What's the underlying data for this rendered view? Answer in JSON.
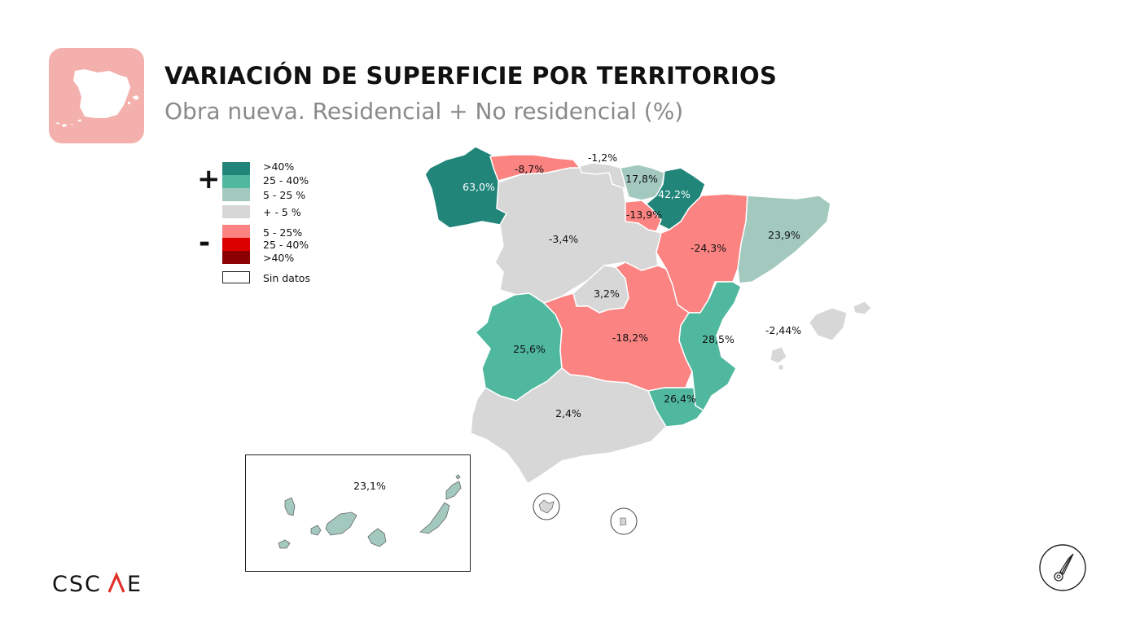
{
  "header": {
    "title": "VARIACIÓN DE SUPERFICIE POR TERRITORIOS",
    "subtitle": "Obra nueva. Residencial + No residencial (%)"
  },
  "brand": {
    "logo_text": "CSCAE",
    "logo_accent": "#e0312b",
    "tile_color": "#f4b0ad"
  },
  "legend": {
    "plus_sign": "+",
    "minus_sign": "-",
    "items": [
      {
        "label": ">40%",
        "color": "#21857a"
      },
      {
        "label": "25 - 40%",
        "color": "#4fb89f"
      },
      {
        "label": "5 - 25 %",
        "color": "#a3c9bf"
      },
      {
        "label": "+ - 5 %",
        "color": "#d7d7d7"
      },
      {
        "label": "5 - 25%",
        "color": "#fb8382"
      },
      {
        "label": "25 - 40%",
        "color": "#dd0000"
      },
      {
        "label": ">40%",
        "color": "#8b0000"
      },
      {
        "label": "Sin datos",
        "color": "#ffffff"
      }
    ]
  },
  "regions": {
    "galicia": "63,0%",
    "asturias": "-8,7%",
    "cantabria": "-1,2%",
    "pais_vasco": "17,8%",
    "navarra": "42,2%",
    "la_rioja": "-13,9%",
    "aragon": "-24,3%",
    "cataluna": "23,9%",
    "castilla_leon": "-3,4%",
    "madrid": "3,2%",
    "castilla_la_mancha": "-18,2%",
    "extremadura": "25,6%",
    "valencia": "28,5%",
    "murcia": "26,4%",
    "andalucia": "2,4%",
    "baleares": "-2,44%",
    "canarias": "23,1%"
  },
  "icons": {
    "compass": "compass-icon",
    "spain": "spain-map-icon"
  }
}
